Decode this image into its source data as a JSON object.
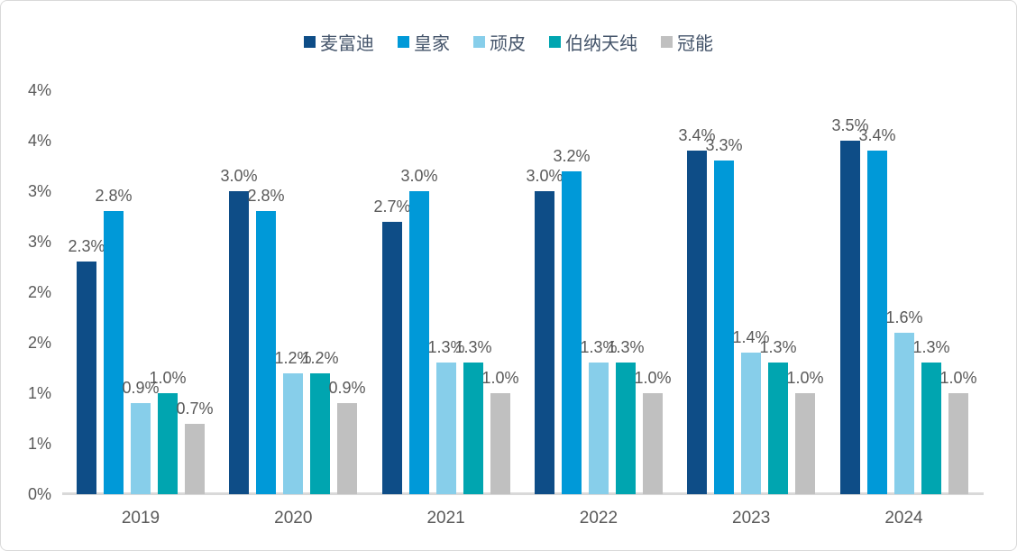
{
  "chart_data": {
    "type": "bar",
    "title": "",
    "categories": [
      "2019",
      "2020",
      "2021",
      "2022",
      "2023",
      "2024"
    ],
    "series": [
      {
        "name": "麦富迪",
        "color": "#0E4D87",
        "values": [
          2.3,
          3.0,
          2.7,
          3.0,
          3.4,
          3.5
        ],
        "labels": [
          "2.3%",
          "3.0%",
          "2.7%",
          "3.0%",
          "3.4%",
          "3.5%"
        ]
      },
      {
        "name": "皇家",
        "color": "#0099D8",
        "values": [
          2.8,
          2.8,
          3.0,
          3.2,
          3.3,
          3.4
        ],
        "labels": [
          "2.8%",
          "2.8%",
          "3.0%",
          "3.2%",
          "3.3%",
          "3.4%"
        ]
      },
      {
        "name": "顽皮",
        "color": "#87CEEA",
        "values": [
          0.9,
          1.2,
          1.3,
          1.3,
          1.4,
          1.6
        ],
        "labels": [
          "0.9%",
          "1.2%",
          "1.3%",
          "1.3%",
          "1.4%",
          "1.6%"
        ]
      },
      {
        "name": "伯纳天纯",
        "color": "#00A5B0",
        "values": [
          1.0,
          1.2,
          1.3,
          1.3,
          1.3,
          1.3
        ],
        "labels": [
          "1.0%",
          "1.2%",
          "1.3%",
          "1.3%",
          "1.3%",
          "1.3%"
        ]
      },
      {
        "name": "冠能",
        "color": "#C0C0C0",
        "values": [
          0.7,
          0.9,
          1.0,
          1.0,
          1.0,
          1.0
        ],
        "labels": [
          "0.7%",
          "0.9%",
          "1.0%",
          "1.0%",
          "1.0%",
          "1.0%"
        ]
      }
    ],
    "y_axis": {
      "min": 0,
      "max": 4,
      "tick_step": 0.5,
      "tick_labels_top_to_bottom": [
        "4%",
        "4%",
        "3%",
        "3%",
        "2%",
        "2%",
        "1%",
        "1%",
        "0%"
      ]
    },
    "grid": "off",
    "legend_position": "top",
    "value_label_color": "#595959",
    "axis_label_color": "#595959",
    "axis_line_color": "#D9D9D9"
  }
}
